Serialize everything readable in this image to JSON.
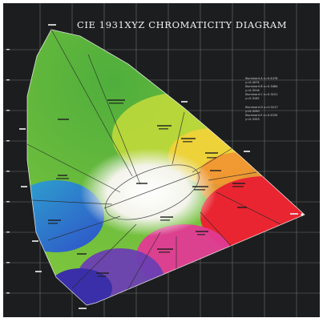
{
  "title": "CIE 1931XYZ CHROMATICITY DIAGRAM",
  "legend": [
    "Illuminant A  x=0.4476",
    "              y=0.4074",
    "Illuminant B  x=0.3484",
    "              y=0.3516",
    "Illuminant C  x=0.3101",
    "              y=0.3162",
    "Illuminant D  x=0.3127",
    "              y=0.3290",
    "Illuminant E  x=0.3333",
    "              y=0.3333"
  ],
  "colors": {
    "background": "#1c1d1f",
    "green": "#4fae3c",
    "yellow": "#f3d23a",
    "orange": "#f19233",
    "red": "#e92531",
    "magenta": "#e03a93",
    "purple": "#6b3fb3",
    "blue": "#2b4bd0",
    "cyan": "#2aa7d6",
    "white_point": "#ffffff"
  }
}
